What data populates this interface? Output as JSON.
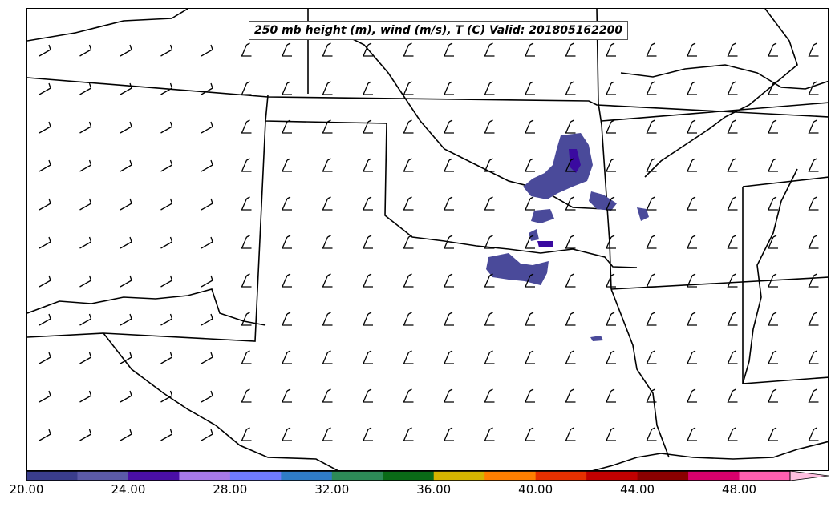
{
  "title": "250 mb height (m), wind (m/s), T (C) Valid: 201805162200",
  "colorbar": {
    "min": 20.0,
    "max": 51.5,
    "tick_labels": [
      "20.00",
      "24.00",
      "28.00",
      "32.00",
      "36.00",
      "40.00",
      "44.00",
      "48.00"
    ],
    "tick_values": [
      20,
      24,
      28,
      32,
      36,
      40,
      44,
      48
    ],
    "colors": [
      "#3a3d8c",
      "#5b5aa8",
      "#4a0fa6",
      "#a779e8",
      "#6f7bff",
      "#2f7cc7",
      "#2d8a57",
      "#0a6b17",
      "#d4b400",
      "#ff7f00",
      "#e63000",
      "#c00000",
      "#8b0000",
      "#d8006c",
      "#ff5fb0",
      "#ffc0e0"
    ],
    "extend": "max"
  },
  "map": {
    "region": "Southern Plains",
    "overlay_color": "#4a4a9a",
    "overlay_dark": "#3a0aa0"
  }
}
